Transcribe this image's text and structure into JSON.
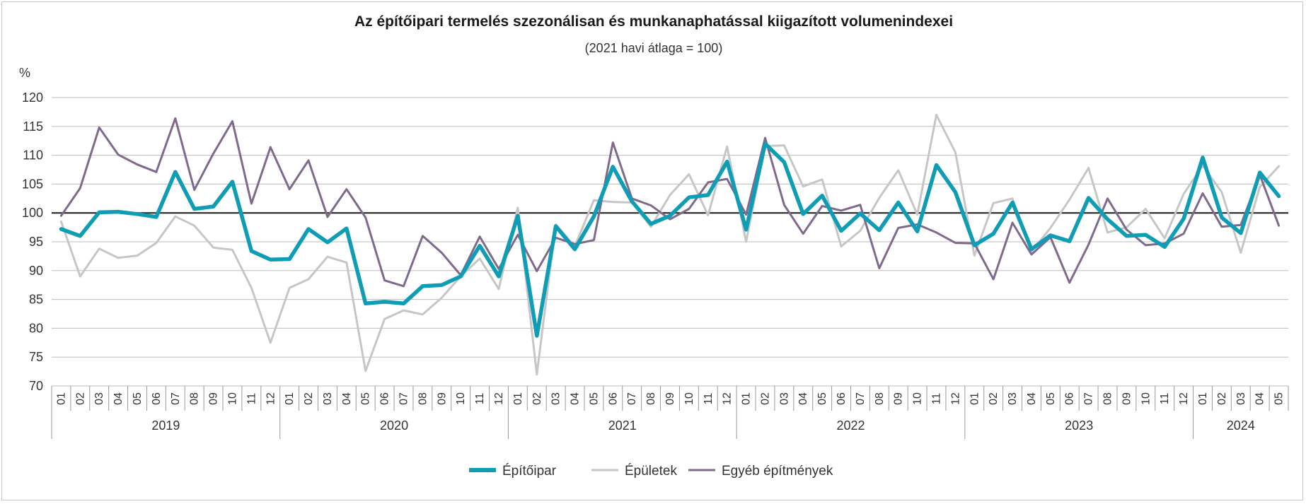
{
  "chart_data": {
    "type": "line",
    "title": "Az építőipari termelés szezonálisan és munkanaphatással kiigazított volumenindexei",
    "subtitle": "(2021 havi átlaga = 100)",
    "ylabel": "%",
    "ylim": [
      70,
      120
    ],
    "yticks": [
      70,
      75,
      80,
      85,
      90,
      95,
      100,
      105,
      110,
      115,
      120
    ],
    "reference_line": 100,
    "years": [
      {
        "label": "2019",
        "months": 12
      },
      {
        "label": "2020",
        "months": 12
      },
      {
        "label": "2021",
        "months": 12
      },
      {
        "label": "2022",
        "months": 12
      },
      {
        "label": "2023",
        "months": 12
      },
      {
        "label": "2024",
        "months": 5
      }
    ],
    "categories": [
      "01",
      "02",
      "03",
      "04",
      "05",
      "06",
      "07",
      "08",
      "09",
      "10",
      "11",
      "12",
      "01",
      "02",
      "03",
      "04",
      "05",
      "06",
      "07",
      "08",
      "09",
      "10",
      "11",
      "12",
      "01",
      "02",
      "03",
      "04",
      "05",
      "06",
      "07",
      "08",
      "09",
      "10",
      "11",
      "12",
      "01",
      "02",
      "03",
      "04",
      "05",
      "06",
      "07",
      "08",
      "09",
      "10",
      "11",
      "12",
      "01",
      "02",
      "03",
      "04",
      "05",
      "06",
      "07",
      "08",
      "09",
      "10",
      "11",
      "12",
      "01",
      "02",
      "03",
      "04",
      "05"
    ],
    "series": [
      {
        "name": "Épületek",
        "color": "#c6c6c6",
        "values": [
          98.5,
          89.0,
          93.8,
          92.2,
          92.6,
          94.8,
          99.4,
          97.8,
          94.0,
          93.6,
          87.0,
          77.5,
          87.0,
          88.5,
          92.4,
          91.4,
          72.6,
          81.6,
          83.1,
          82.4,
          85.3,
          89.0,
          92.1,
          86.8,
          100.9,
          72.0,
          98.0,
          94.2,
          102.2,
          101.9,
          101.8,
          97.6,
          103.1,
          106.7,
          99.6,
          111.5,
          95.0,
          111.6,
          111.7,
          104.6,
          105.8,
          94.2,
          96.9,
          102.6,
          107.4,
          99.7,
          117.0,
          110.5,
          92.6,
          101.7,
          102.5,
          93.3,
          97.4,
          102.3,
          107.8,
          96.6,
          97.5,
          100.7,
          95.6,
          103.3,
          108.2,
          103.6,
          93.1,
          104.5,
          108.1
        ]
      },
      {
        "name": "Egyéb építmények",
        "color": "#7f6a8b",
        "values": [
          99.5,
          104.3,
          114.8,
          110.1,
          108.4,
          107.1,
          116.4,
          104.0,
          110.3,
          115.9,
          101.6,
          111.4,
          104.1,
          109.1,
          99.3,
          104.1,
          99.2,
          88.3,
          87.3,
          96.0,
          93.1,
          89.2,
          95.9,
          90.3,
          96.2,
          89.9,
          95.7,
          94.6,
          95.3,
          112.2,
          102.5,
          101.3,
          98.9,
          100.7,
          105.3,
          105.9,
          99.7,
          113.0,
          101.4,
          96.4,
          101.2,
          100.4,
          101.4,
          90.4,
          97.4,
          98.0,
          96.6,
          94.8,
          94.7,
          88.5,
          98.3,
          92.8,
          95.8,
          87.9,
          94.5,
          102.5,
          97.1,
          94.4,
          94.7,
          96.4,
          103.4,
          97.6,
          97.9,
          106.6,
          97.8
        ]
      },
      {
        "name": "Építőipar",
        "color": "#0f9db5",
        "values": [
          97.2,
          96.0,
          100.1,
          100.2,
          99.8,
          99.3,
          107.1,
          100.7,
          101.1,
          105.4,
          93.4,
          91.9,
          92.0,
          97.2,
          94.9,
          97.3,
          84.3,
          84.6,
          84.3,
          87.3,
          87.5,
          89.0,
          94.3,
          89.0,
          99.5,
          78.7,
          97.7,
          93.7,
          99.4,
          108.0,
          102.0,
          98.1,
          99.5,
          102.7,
          103.1,
          108.9,
          97.1,
          112.0,
          108.8,
          99.8,
          103.0,
          96.9,
          99.9,
          97.0,
          101.8,
          96.8,
          108.3,
          103.6,
          94.4,
          96.4,
          101.8,
          93.7,
          96.1,
          95.1,
          102.6,
          98.9,
          96.0,
          96.2,
          94.1,
          99.0,
          109.6,
          99.2,
          96.5,
          107.0,
          102.9
        ]
      }
    ],
    "legend": [
      {
        "name": "Építőipar",
        "color": "#0f9db5"
      },
      {
        "name": "Épületek",
        "color": "#c6c6c6"
      },
      {
        "name": "Egyéb építmények",
        "color": "#7f6a8b"
      }
    ],
    "legend_position": "bottom-center"
  }
}
